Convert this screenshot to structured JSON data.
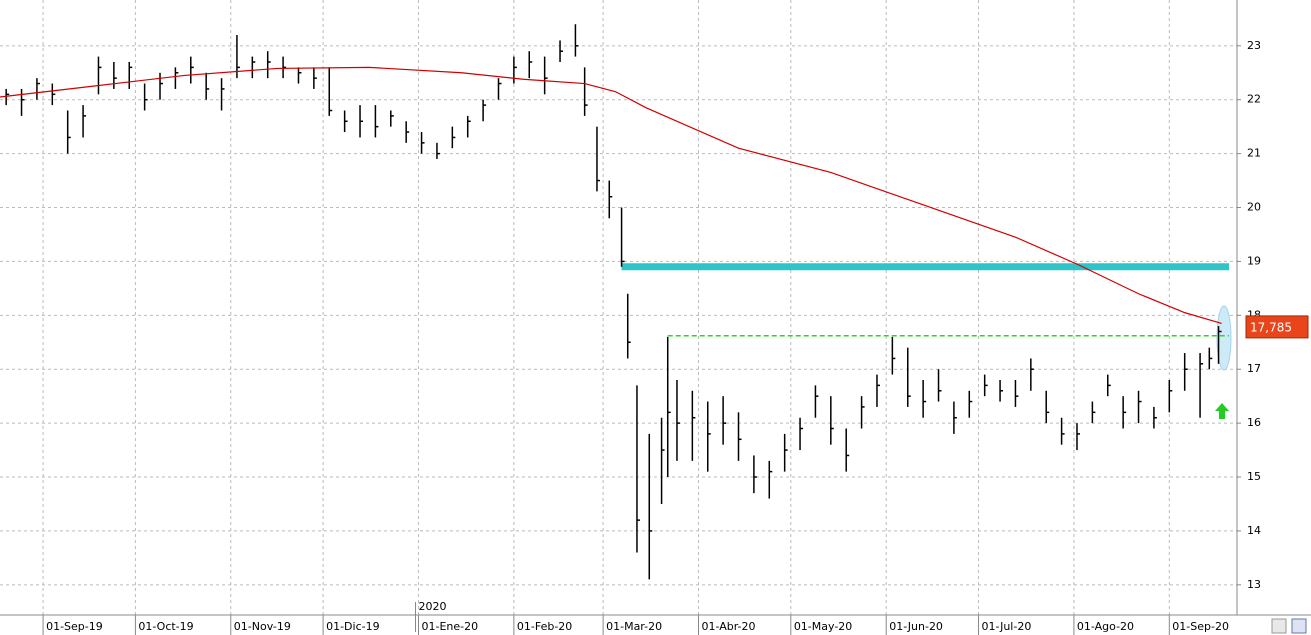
{
  "chart_data": {
    "type": "ohlc",
    "color": "#000000",
    "grid": true,
    "xlim": [
      0,
      402
    ],
    "ylim": [
      12.44,
      23.85
    ],
    "yticks": [
      13,
      14,
      15,
      16,
      17,
      18,
      19,
      20,
      21,
      22,
      23
    ],
    "xticks": [
      {
        "value": 14,
        "label": "01-Sep-19"
      },
      {
        "value": 44,
        "label": "01-Oct-19"
      },
      {
        "value": 75,
        "label": "01-Nov-19"
      },
      {
        "value": 105,
        "label": "01-Dic-19"
      },
      {
        "value": 136,
        "label": "01-Ene-20"
      },
      {
        "value": 167,
        "label": "01-Feb-20"
      },
      {
        "value": 196,
        "label": "01-Mar-20"
      },
      {
        "value": 227,
        "label": "01-Abr-20"
      },
      {
        "value": 257,
        "label": "01-May-20"
      },
      {
        "value": 288,
        "label": "01-Jun-20"
      },
      {
        "value": 318,
        "label": "01-Jul-20"
      },
      {
        "value": 349,
        "label": "01-Ago-20"
      },
      {
        "value": 380,
        "label": "01-Sep-20"
      }
    ],
    "year_label": {
      "value": 136,
      "label": "2020"
    },
    "x": [
      2,
      7,
      12,
      17,
      22,
      27,
      32,
      37,
      42,
      47,
      52,
      57,
      62,
      67,
      72,
      77,
      82,
      87,
      92,
      97,
      102,
      107,
      112,
      117,
      122,
      127,
      132,
      137,
      142,
      147,
      152,
      157,
      162,
      167,
      172,
      177,
      182,
      187,
      190,
      194,
      198,
      202,
      204,
      207,
      211,
      215,
      217,
      220,
      225,
      230,
      235,
      240,
      245,
      250,
      255,
      260,
      265,
      270,
      275,
      280,
      285,
      290,
      295,
      300,
      305,
      310,
      315,
      320,
      325,
      330,
      335,
      340,
      345,
      350,
      355,
      360,
      365,
      370,
      375,
      380,
      385,
      390,
      393,
      396
    ],
    "high": [
      22.2,
      22.2,
      22.4,
      22.3,
      21.8,
      21.9,
      22.8,
      22.7,
      22.7,
      22.3,
      22.5,
      22.6,
      22.8,
      22.5,
      22.4,
      23.2,
      22.8,
      22.9,
      22.8,
      22.6,
      22.6,
      22.6,
      21.8,
      21.9,
      21.9,
      21.8,
      21.6,
      21.4,
      21.2,
      21.5,
      21.7,
      22.0,
      22.4,
      22.8,
      22.9,
      22.8,
      23.1,
      23.4,
      22.6,
      21.5,
      20.5,
      20.0,
      18.4,
      16.7,
      15.8,
      16.1,
      17.6,
      16.8,
      16.6,
      16.4,
      16.5,
      16.2,
      15.4,
      15.3,
      15.8,
      16.1,
      16.7,
      16.5,
      15.9,
      16.5,
      16.9,
      17.6,
      17.4,
      16.8,
      17.0,
      16.4,
      16.6,
      16.9,
      16.8,
      16.8,
      17.2,
      16.6,
      16.1,
      16.0,
      16.4,
      16.9,
      16.5,
      16.6,
      16.3,
      16.8,
      17.3,
      17.3,
      17.4,
      17.8
    ],
    "low": [
      21.9,
      21.7,
      22.0,
      21.9,
      21.0,
      21.3,
      22.1,
      22.2,
      22.2,
      21.8,
      22.0,
      22.2,
      22.3,
      22.0,
      21.8,
      22.4,
      22.4,
      22.4,
      22.4,
      22.3,
      22.2,
      21.7,
      21.4,
      21.3,
      21.3,
      21.5,
      21.2,
      21.0,
      20.9,
      21.1,
      21.3,
      21.6,
      22.0,
      22.3,
      22.4,
      22.1,
      22.7,
      22.8,
      21.7,
      20.3,
      19.8,
      18.9,
      17.2,
      13.6,
      13.1,
      14.5,
      15.0,
      15.3,
      15.3,
      15.1,
      15.6,
      15.3,
      14.7,
      14.6,
      15.1,
      15.5,
      16.1,
      15.6,
      15.1,
      15.9,
      16.3,
      16.9,
      16.3,
      16.1,
      16.4,
      15.8,
      16.1,
      16.5,
      16.4,
      16.3,
      16.6,
      16.0,
      15.6,
      15.5,
      16.0,
      16.5,
      15.9,
      16.0,
      15.9,
      16.2,
      16.6,
      16.1,
      17.0,
      17.1
    ],
    "close": [
      22.1,
      22.0,
      22.3,
      22.1,
      21.3,
      21.7,
      22.6,
      22.4,
      22.6,
      22.0,
      22.3,
      22.5,
      22.6,
      22.2,
      22.2,
      22.6,
      22.7,
      22.7,
      22.6,
      22.5,
      22.4,
      21.8,
      21.6,
      21.6,
      21.5,
      21.7,
      21.4,
      21.2,
      21.0,
      21.3,
      21.6,
      21.9,
      22.3,
      22.6,
      22.7,
      22.4,
      22.9,
      23.0,
      21.9,
      20.5,
      20.2,
      19.0,
      17.5,
      14.2,
      14.0,
      15.5,
      16.2,
      16.0,
      16.1,
      15.8,
      16.0,
      15.7,
      15.0,
      15.1,
      15.5,
      15.9,
      16.5,
      15.9,
      15.4,
      16.3,
      16.7,
      17.2,
      16.5,
      16.4,
      16.6,
      16.1,
      16.4,
      16.7,
      16.6,
      16.5,
      17.0,
      16.2,
      15.8,
      15.8,
      16.2,
      16.7,
      16.2,
      16.4,
      16.1,
      16.6,
      17.0,
      17.1,
      17.2,
      17.7
    ],
    "moving_average": {
      "color": "#d00000",
      "x": [
        0,
        30,
        60,
        90,
        120,
        150,
        170,
        190,
        200,
        210,
        240,
        270,
        300,
        330,
        350,
        370,
        385,
        397
      ],
      "values": [
        22.05,
        22.25,
        22.45,
        22.58,
        22.6,
        22.5,
        22.38,
        22.3,
        22.15,
        21.85,
        21.1,
        20.65,
        20.05,
        19.45,
        18.95,
        18.4,
        18.05,
        17.85
      ]
    },
    "levels": [
      {
        "value": 18.9,
        "start": 202,
        "color": "#2ec4c8",
        "style": "solid"
      },
      {
        "value": 17.62,
        "start": 217,
        "color": "#22dd22",
        "style": "dashed"
      }
    ],
    "last_price": {
      "value": 17.785,
      "label": "17,785"
    }
  }
}
